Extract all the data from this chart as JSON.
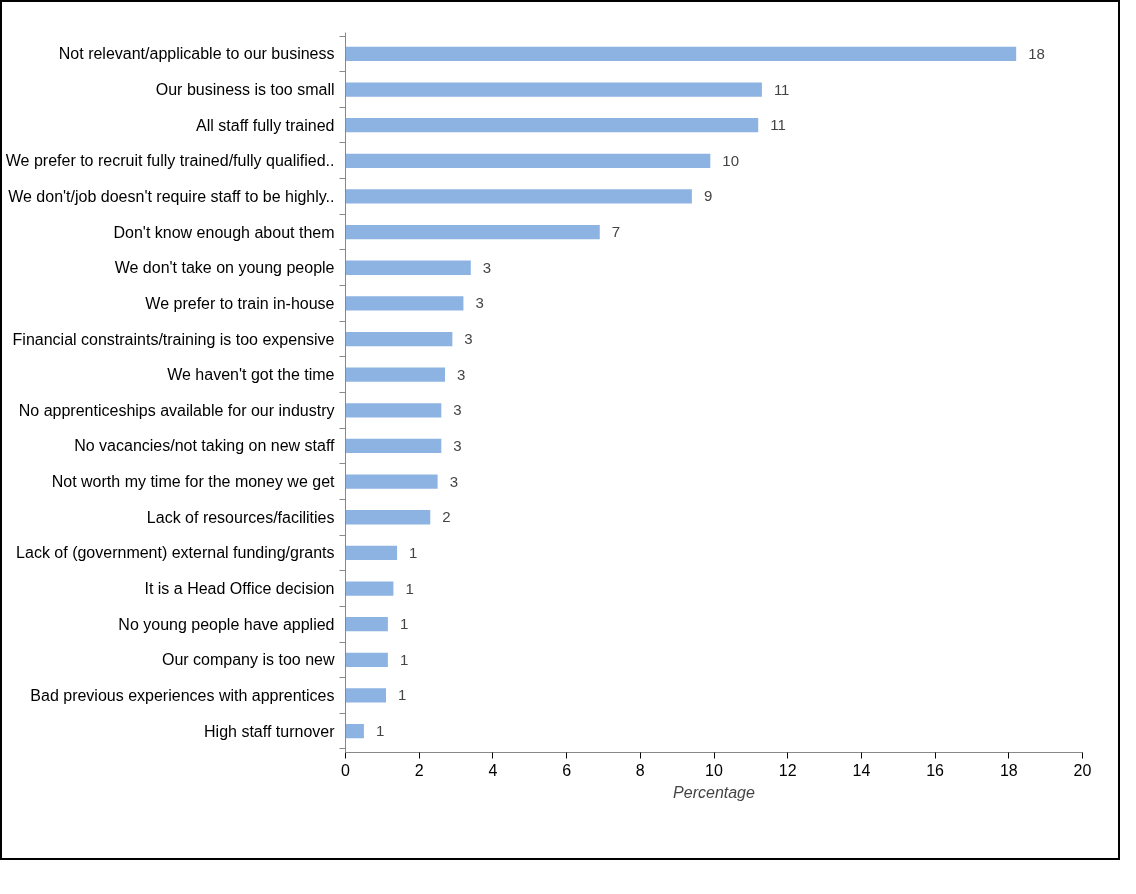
{
  "chart_data": {
    "type": "bar",
    "orientation": "horizontal",
    "xlabel": "Percentage",
    "categories": [
      "Not relevant/applicable to our business",
      "Our business is too small",
      "All staff fully trained",
      "We prefer to recruit fully trained/fully qualified..",
      "We don't/job doesn't require staff to be highly..",
      "Don't know enough about them",
      "We don't take on young people",
      "We prefer to train in-house",
      "Financial constraints/training is too expensive",
      "We haven't got the time",
      "No apprenticeships available for our industry",
      "No vacancies/not taking on new staff",
      "Not worth my time for the money we get",
      "Lack of resources/facilities",
      "Lack of (government) external funding/grants",
      "It is a Head Office decision",
      "No young people have applied",
      "Our company is too new",
      "Bad previous experiences with apprentices",
      "High staff turnover"
    ],
    "values": [
      18.2,
      11.3,
      11.2,
      9.9,
      9.4,
      6.9,
      3.4,
      3.2,
      2.9,
      2.7,
      2.6,
      2.6,
      2.5,
      2.3,
      1.4,
      1.3,
      1.15,
      1.15,
      1.1,
      0.5
    ],
    "value_labels": [
      "18",
      "11",
      "11",
      "10",
      "9",
      "7",
      "3",
      "3",
      "3",
      "3",
      "3",
      "3",
      "3",
      "2",
      "1",
      "1",
      "1",
      "1",
      "1",
      "1"
    ],
    "color": "#8db3e2",
    "xlim": [
      0,
      20
    ],
    "xticks": [
      0,
      2,
      4,
      6,
      8,
      10,
      12,
      14,
      16,
      18,
      20
    ],
    "grid": false
  }
}
